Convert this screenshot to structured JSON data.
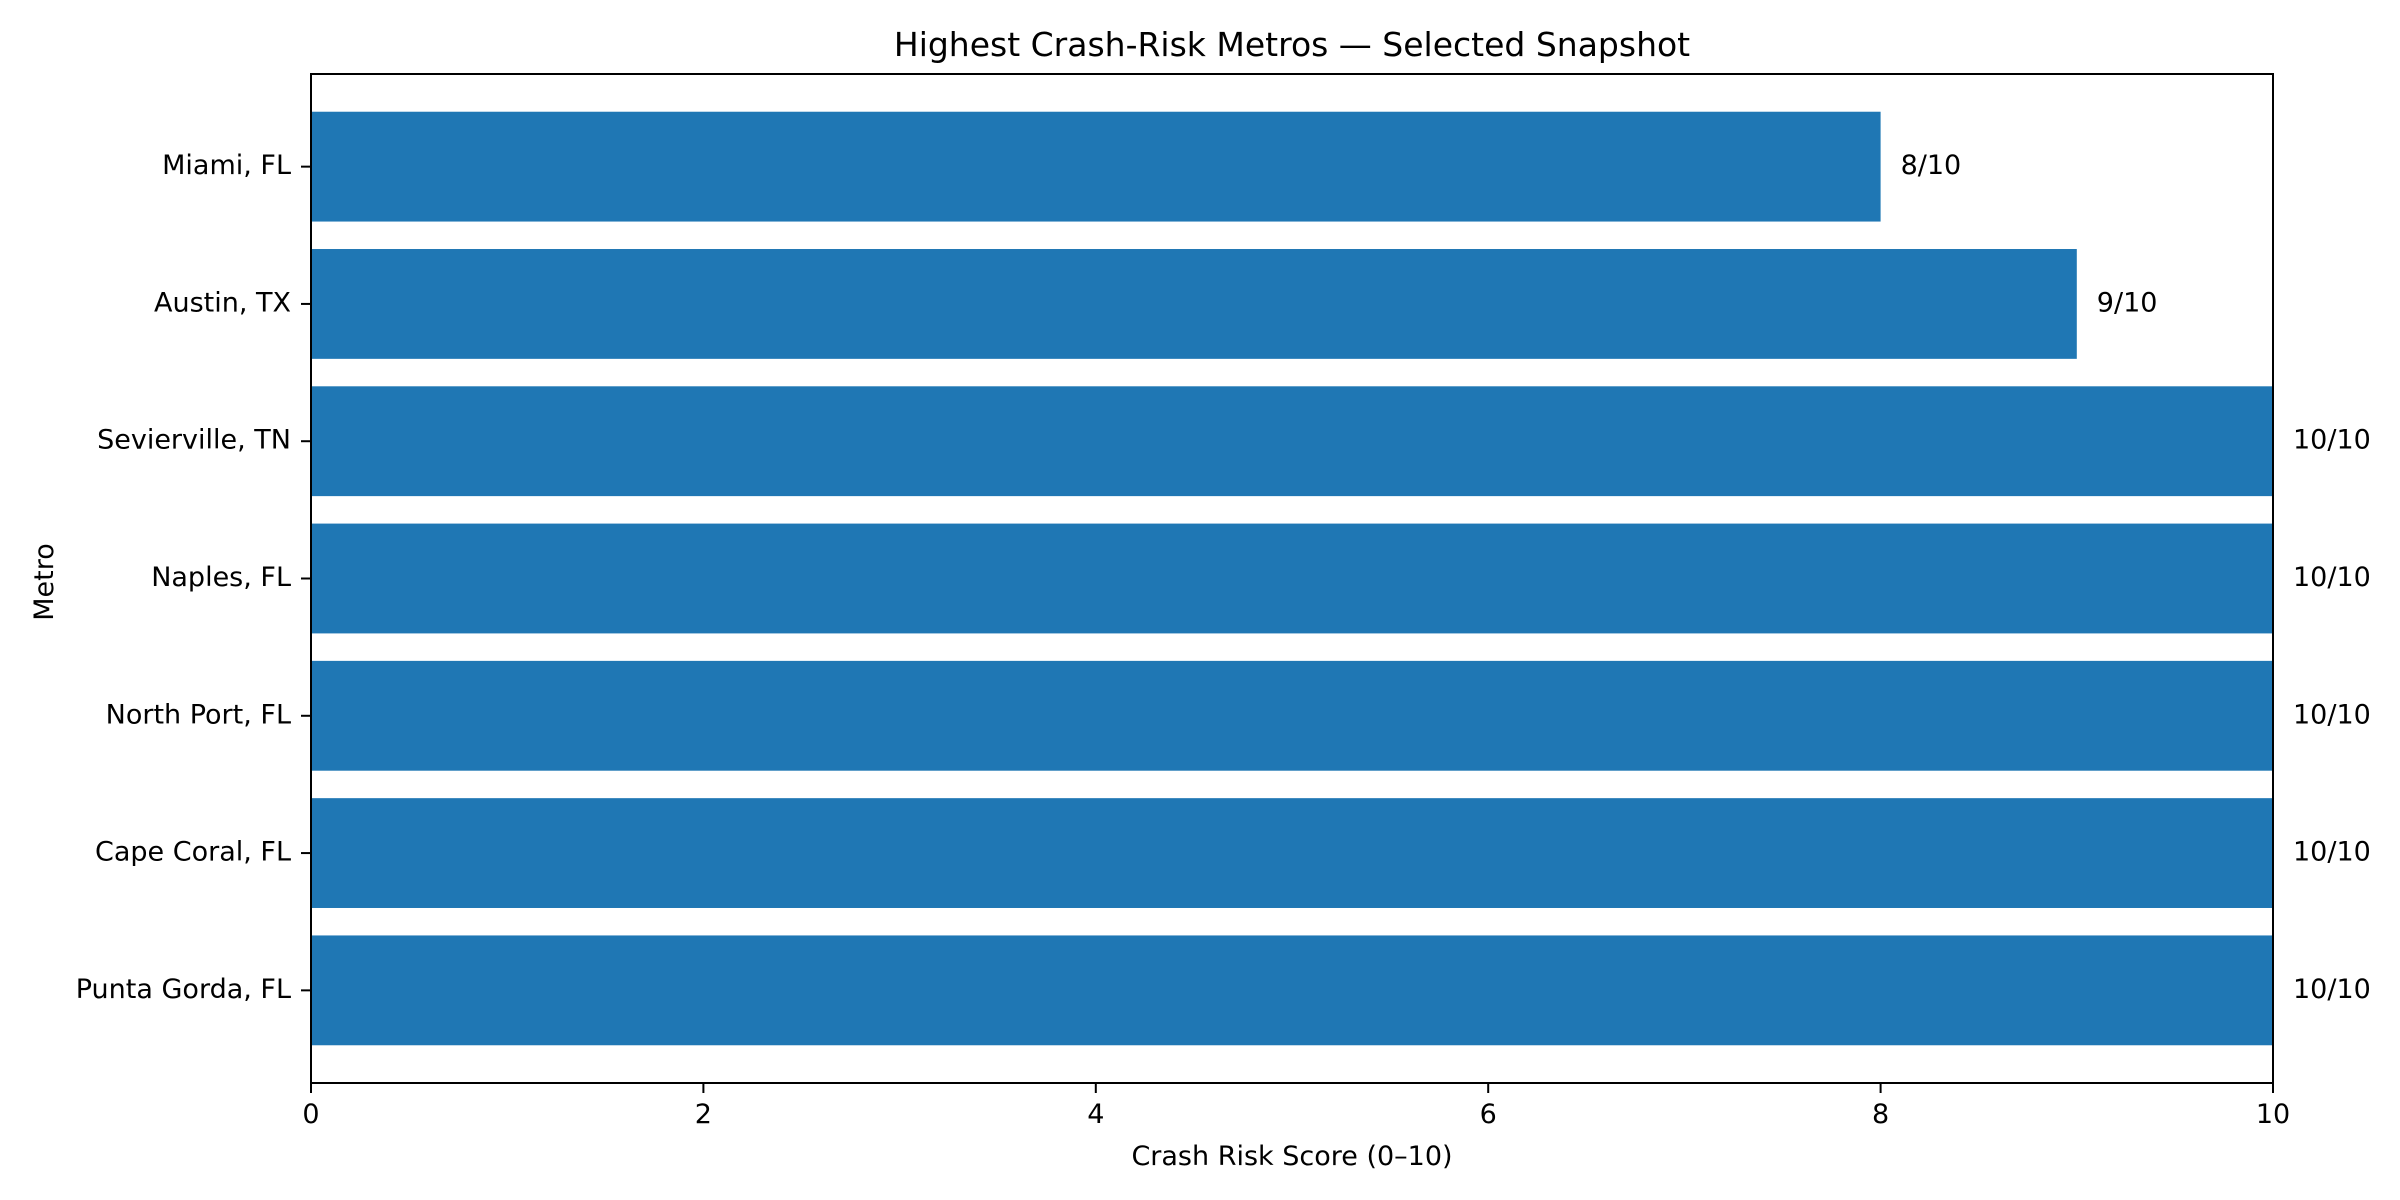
{
  "chart_data": {
    "type": "bar",
    "orientation": "horizontal",
    "title": "Highest Crash-Risk Metros — Selected Snapshot",
    "xlabel": "Crash Risk Score (0–10)",
    "ylabel": "Metro",
    "categories": [
      "Miami, FL",
      "Austin, TX",
      "Sevierville, TN",
      "Naples, FL",
      "North Port, FL",
      "Cape Coral, FL",
      "Punta Gorda, FL"
    ],
    "values": [
      8,
      9,
      10,
      10,
      10,
      10,
      10
    ],
    "value_labels": [
      "8/10",
      "9/10",
      "10/10",
      "10/10",
      "10/10",
      "10/10",
      "10/10"
    ],
    "xlim": [
      0,
      10
    ],
    "xticks": [
      0,
      2,
      4,
      6,
      8,
      10
    ],
    "xtick_labels": [
      "0",
      "2",
      "4",
      "6",
      "8",
      "10"
    ],
    "grid": false,
    "colors": {
      "bar": "#1f77b4"
    }
  }
}
